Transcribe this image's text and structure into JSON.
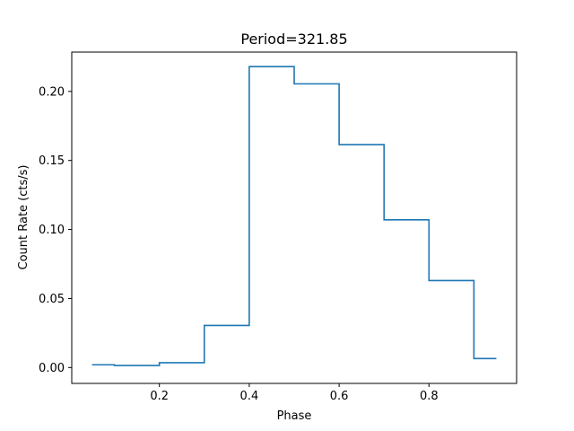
{
  "chart_data": {
    "type": "line",
    "style": "step",
    "title": "Period=321.85",
    "xlabel": "Phase",
    "ylabel": "Count Rate (cts/s)",
    "xlim": [
      0.005,
      0.995
    ],
    "ylim": [
      -0.0115,
      0.2285
    ],
    "xticks": [
      0.2,
      0.4,
      0.6,
      0.8
    ],
    "xtick_labels": [
      "0.2",
      "0.4",
      "0.6",
      "0.8"
    ],
    "yticks": [
      0.0,
      0.05,
      0.1,
      0.15,
      0.2
    ],
    "ytick_labels": [
      "0.00",
      "0.05",
      "0.10",
      "0.15",
      "0.20"
    ],
    "grid": false,
    "legend": "none",
    "color": "#1f77b4",
    "series": [
      {
        "x": [
          0.05,
          0.15,
          0.25,
          0.35,
          0.45,
          0.55,
          0.65,
          0.75,
          0.85,
          0.95
        ],
        "values": [
          0.002,
          0.0015,
          0.0035,
          0.0305,
          0.218,
          0.2055,
          0.1615,
          0.107,
          0.063,
          0.0065
        ]
      }
    ]
  }
}
